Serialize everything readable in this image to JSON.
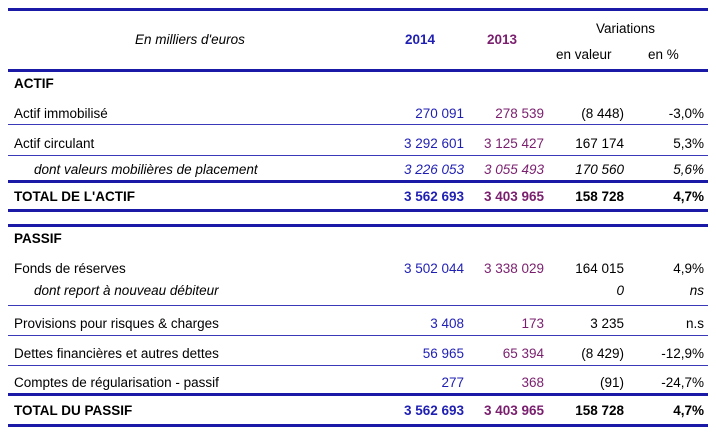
{
  "header": {
    "unit_label": "En milliers d'euros",
    "year_2014": "2014",
    "year_2013": "2013",
    "variations": "Variations",
    "en_valeur": "en valeur",
    "en_pct": "en %"
  },
  "actif": {
    "section": "ACTIF",
    "rows": [
      {
        "label": "Actif immobilisé",
        "v2014": "270 091",
        "v2013": "278 539",
        "val": "(8 448)",
        "pct": "-3,0%"
      },
      {
        "label": "Actif circulant",
        "v2014": "3 292 601",
        "v2013": "3 125 427",
        "val": "167 174",
        "pct": "5,3%"
      },
      {
        "label": "dont valeurs mobilières de placement",
        "v2014": "3 226 053",
        "v2013": "3 055 493",
        "val": "170 560",
        "pct": "5,6%"
      }
    ],
    "total": {
      "label": "TOTAL DE L'ACTIF",
      "v2014": "3 562 693",
      "v2013": "3 403 965",
      "val": "158 728",
      "pct": "4,7%"
    }
  },
  "passif": {
    "section": "PASSIF",
    "rows": [
      {
        "label": "Fonds de réserves",
        "v2014": "3 502 044",
        "v2013": "3 338 029",
        "val": "164 015",
        "pct": "4,9%"
      },
      {
        "label": "dont report à nouveau débiteur",
        "val": "0",
        "pct": "ns"
      },
      {
        "label": "Provisions pour risques & charges",
        "v2014": "3 408",
        "v2013": "173",
        "val": "3 235",
        "pct": "n.s"
      },
      {
        "label": "Dettes financières et autres dettes",
        "v2014": "56 965",
        "v2013": "65 394",
        "val": "(8 429)",
        "pct": "-12,9%"
      },
      {
        "label": "Comptes de régularisation - passif",
        "v2014": "277",
        "v2013": "368",
        "val": "(91)",
        "pct": "-24,7%"
      }
    ],
    "total": {
      "label": "TOTAL DU PASSIF",
      "v2014": "3 562 693",
      "v2013": "3 403 965",
      "val": "158 728",
      "pct": "4,7%"
    }
  }
}
